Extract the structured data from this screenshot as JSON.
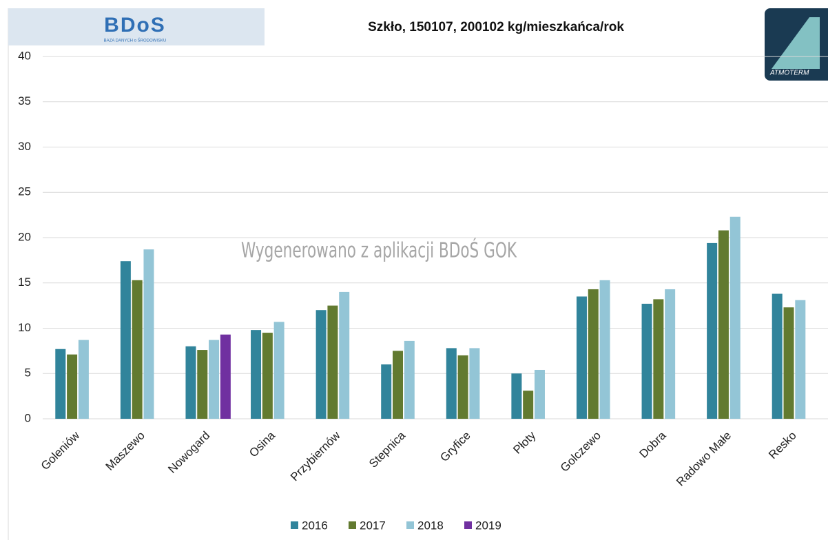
{
  "chart_data": {
    "type": "bar",
    "title": "Szkło, 150107, 200102 kg/mieszkańca/rok",
    "watermark": "Wygenerowano z aplikacji BDoŚ GOK",
    "logo_left": "BDoS",
    "logo_left_sub": "BAZA DANYCH o ŚRODOWISKU",
    "logo_right": "ATMOTERM",
    "categories": [
      "Goleniów",
      "Maszewo",
      "Nowogard",
      "Osina",
      "Przybiernów",
      "Stepnica",
      "Gryfice",
      "Płoty",
      "Golczewo",
      "Dobra",
      "Radowo Małe",
      "Resko"
    ],
    "series": [
      {
        "name": "2016",
        "color": "#31849b",
        "values": [
          7.7,
          17.4,
          8.0,
          9.8,
          12.0,
          6.0,
          7.8,
          5.0,
          13.5,
          12.7,
          19.4,
          13.8
        ]
      },
      {
        "name": "2017",
        "color": "#627a30",
        "values": [
          7.1,
          15.3,
          7.6,
          9.5,
          12.5,
          7.5,
          7.0,
          3.1,
          14.3,
          13.2,
          20.8,
          12.3
        ]
      },
      {
        "name": "2018",
        "color": "#93c5d6",
        "values": [
          8.7,
          18.7,
          8.7,
          10.7,
          14.0,
          8.6,
          7.8,
          5.4,
          15.3,
          14.3,
          22.3,
          13.1
        ]
      },
      {
        "name": "2019",
        "color": "#7030a0",
        "values": [
          null,
          null,
          9.3,
          null,
          null,
          null,
          null,
          null,
          null,
          null,
          null,
          null
        ]
      }
    ],
    "ylim": [
      0,
      40
    ],
    "yticks": [
      0,
      5,
      10,
      15,
      20,
      25,
      30,
      35,
      40
    ],
    "grid": true,
    "legend": "bottom"
  }
}
